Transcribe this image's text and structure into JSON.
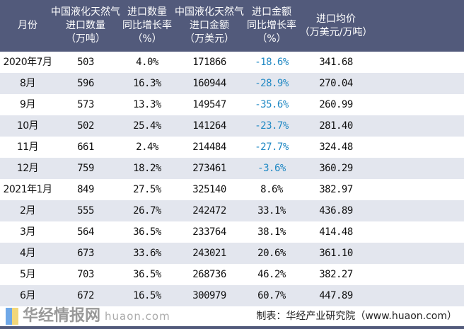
{
  "headers": [
    [
      "月份"
    ],
    [
      "中国液化天然气",
      "进口数量",
      "（万吨）"
    ],
    [
      "进口数量",
      "同比增长率",
      "（%）"
    ],
    [
      "中国液化天然气",
      "进口金额",
      "（万美元）"
    ],
    [
      "进口金额",
      "同比增长率",
      "（%）"
    ],
    [
      "进口均价",
      "（万美元/万吨）"
    ]
  ],
  "rows": [
    [
      "2020年7月",
      "503",
      "4.0%",
      "171866",
      "-18.6%",
      "341.68"
    ],
    [
      "8月",
      "596",
      "16.3%",
      "160944",
      "-28.9%",
      "270.04"
    ],
    [
      "9月",
      "573",
      "13.3%",
      "149547",
      "-35.6%",
      "260.99"
    ],
    [
      "10月",
      "502",
      "25.4%",
      "141264",
      "-23.7%",
      "281.40"
    ],
    [
      "11月",
      "661",
      "2.4%",
      "214484",
      "-27.7%",
      "324.48"
    ],
    [
      "12月",
      "759",
      "18.2%",
      "273461",
      "-3.6%",
      "360.29"
    ],
    [
      "2021年1月",
      "849",
      "27.5%",
      "325140",
      "8.6%",
      "382.97"
    ],
    [
      "2月",
      "555",
      "26.7%",
      "242472",
      "33.1%",
      "436.89"
    ],
    [
      "3月",
      "564",
      "36.5%",
      "233764",
      "38.1%",
      "414.48"
    ],
    [
      "4月",
      "673",
      "33.6%",
      "243021",
      "20.6%",
      "361.10"
    ],
    [
      "5月",
      "703",
      "36.5%",
      "268736",
      "46.2%",
      "382.27"
    ],
    [
      "6月",
      "672",
      "16.5%",
      "300979",
      "60.7%",
      "447.89"
    ]
  ],
  "footer": "制表：华经产业研究院（www.huaon.com）",
  "watermark": {
    "name": "华经情报网",
    "url": "huaon.com"
  },
  "colors": {
    "header_bg": "#525a7b",
    "alt_row": "#e3e6ee",
    "negative": "#2189c4"
  }
}
